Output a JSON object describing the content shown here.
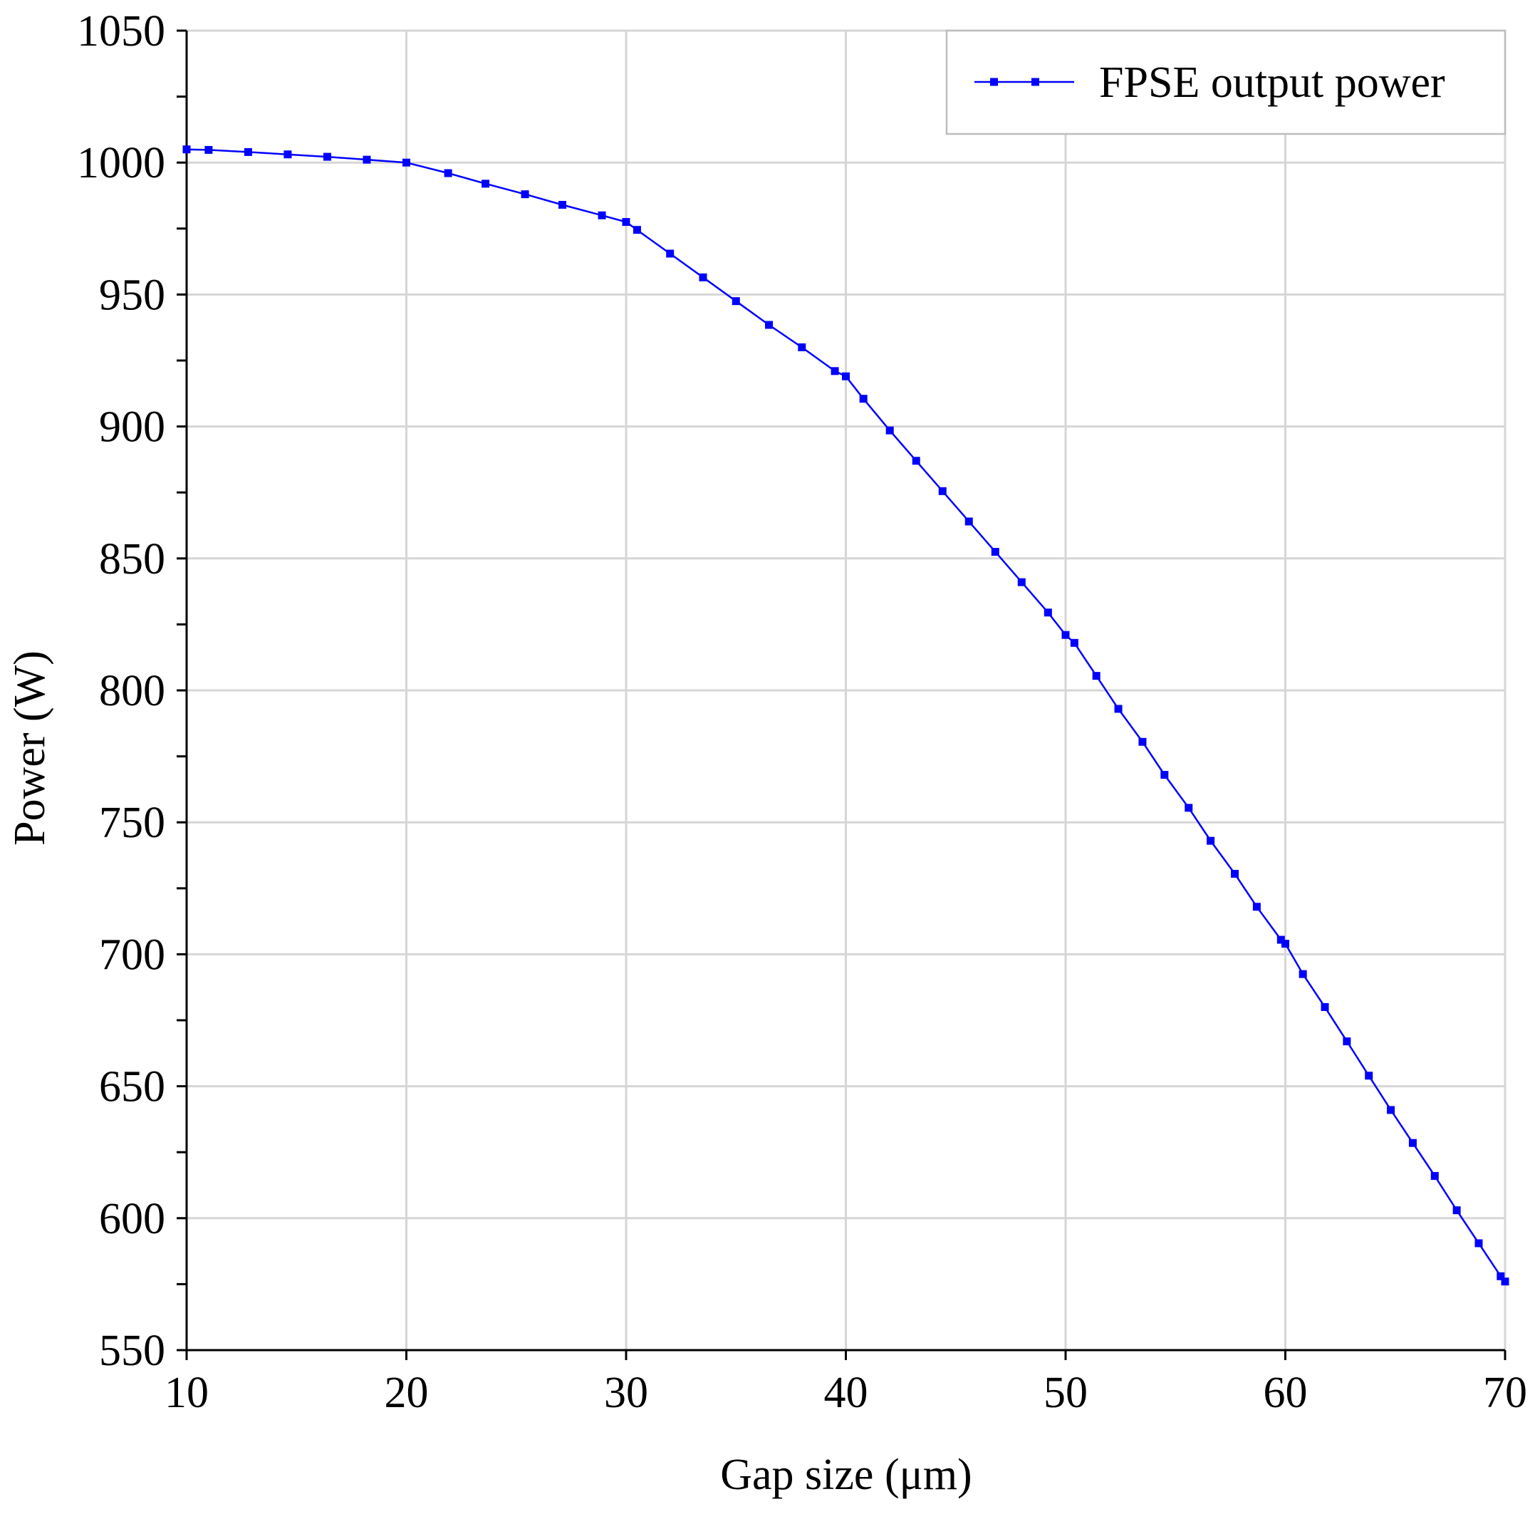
{
  "chart_data": {
    "type": "line",
    "title": "",
    "xlabel": "Gap size (μm)",
    "ylabel": "Power (W)",
    "xlim": [
      10,
      70
    ],
    "ylim": [
      550,
      1050
    ],
    "xticks": [
      10,
      20,
      30,
      40,
      50,
      60,
      70
    ],
    "yticks": [
      550,
      600,
      650,
      700,
      750,
      800,
      850,
      900,
      950,
      1000,
      1050
    ],
    "grid": true,
    "legend_position": "top-right",
    "series": [
      {
        "name": "FPSE output power",
        "color": "#0000ff",
        "marker": "square",
        "x": [
          10,
          11,
          12.8,
          14.6,
          16.4,
          18.2,
          20,
          21.9,
          23.6,
          25.4,
          27.1,
          28.9,
          30,
          30.5,
          32,
          33.5,
          35,
          36.5,
          38,
          39.5,
          40,
          40.8,
          42,
          43.2,
          44.4,
          45.6,
          46.8,
          48,
          49.2,
          50,
          50.4,
          51.4,
          52.4,
          53.5,
          54.5,
          55.6,
          56.6,
          57.7,
          58.7,
          59.8,
          60,
          60.8,
          61.8,
          62.8,
          63.8,
          64.8,
          65.8,
          66.8,
          67.8,
          68.8,
          69.8,
          70
        ],
        "y": [
          1005,
          1004.8,
          1004.0,
          1003.1,
          1002.2,
          1001.1,
          1000,
          996.0,
          992.0,
          988.0,
          984.0,
          980.0,
          977.5,
          974.5,
          965.5,
          956.5,
          947.5,
          938.5,
          930.0,
          921.0,
          919,
          910.5,
          898.5,
          887.0,
          875.5,
          864.0,
          852.5,
          841.0,
          829.5,
          821,
          818.0,
          805.5,
          793.0,
          780.5,
          768.0,
          755.5,
          743.0,
          730.5,
          718.0,
          705.5,
          704,
          692.5,
          680.0,
          667.0,
          654.0,
          641.0,
          628.5,
          616.0,
          603.0,
          590.5,
          578.0,
          576
        ]
      }
    ]
  }
}
